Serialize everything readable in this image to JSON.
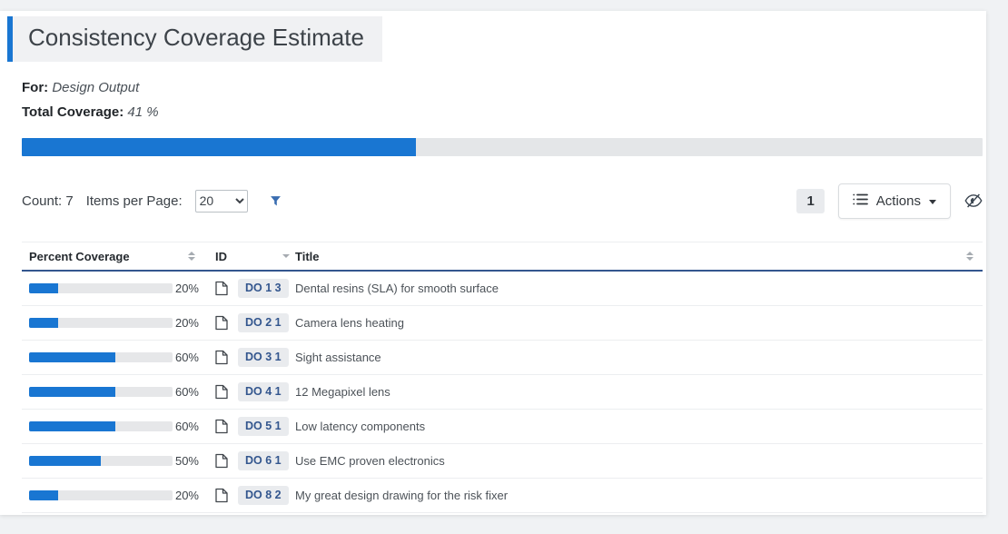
{
  "page": {
    "title": "Consistency Coverage Estimate"
  },
  "coverage": {
    "for_label": "For:",
    "for_value": "Design Output",
    "total_label": "Total Coverage:",
    "total_value": "41 %",
    "total_percent": 41
  },
  "toolbar": {
    "count_label": "Count:",
    "count_value": "7",
    "items_per_page_label": "Items per Page:",
    "items_per_page_selected": "20",
    "page_number": "1",
    "actions_label": "Actions"
  },
  "icons": {
    "filter": "funnel-icon",
    "actions_list": "list-icon",
    "actions_caret": "caret-down-icon",
    "visibility": "eye-slash-icon",
    "row_document": "file-icon",
    "sort_percent": "up-down-arrows",
    "sort_id": "down-arrow",
    "sort_title": "up-down-arrows"
  },
  "colors": {
    "accent_blue": "#1976d2",
    "header_border_navy": "#33568e",
    "badge_bg": "#e9ebee",
    "track_gray": "#e4e6e8",
    "page_bg": "#f0f2f4"
  },
  "table": {
    "columns": [
      {
        "label": "Percent Coverage"
      },
      {
        "label": "ID"
      },
      {
        "label": "Title"
      }
    ],
    "rows": [
      {
        "percent": 20,
        "percent_label": "20%",
        "id": "DO 1 3",
        "title": "Dental resins (SLA) for smooth surface"
      },
      {
        "percent": 20,
        "percent_label": "20%",
        "id": "DO 2 1",
        "title": "Camera lens heating"
      },
      {
        "percent": 60,
        "percent_label": "60%",
        "id": "DO 3 1",
        "title": "Sight assistance"
      },
      {
        "percent": 60,
        "percent_label": "60%",
        "id": "DO 4 1",
        "title": "12 Megapixel lens"
      },
      {
        "percent": 60,
        "percent_label": "60%",
        "id": "DO 5 1",
        "title": "Low latency components"
      },
      {
        "percent": 50,
        "percent_label": "50%",
        "id": "DO 6 1",
        "title": "Use EMC proven electronics"
      },
      {
        "percent": 20,
        "percent_label": "20%",
        "id": "DO 8 2",
        "title": "My great design drawing for the risk fixer"
      }
    ]
  }
}
